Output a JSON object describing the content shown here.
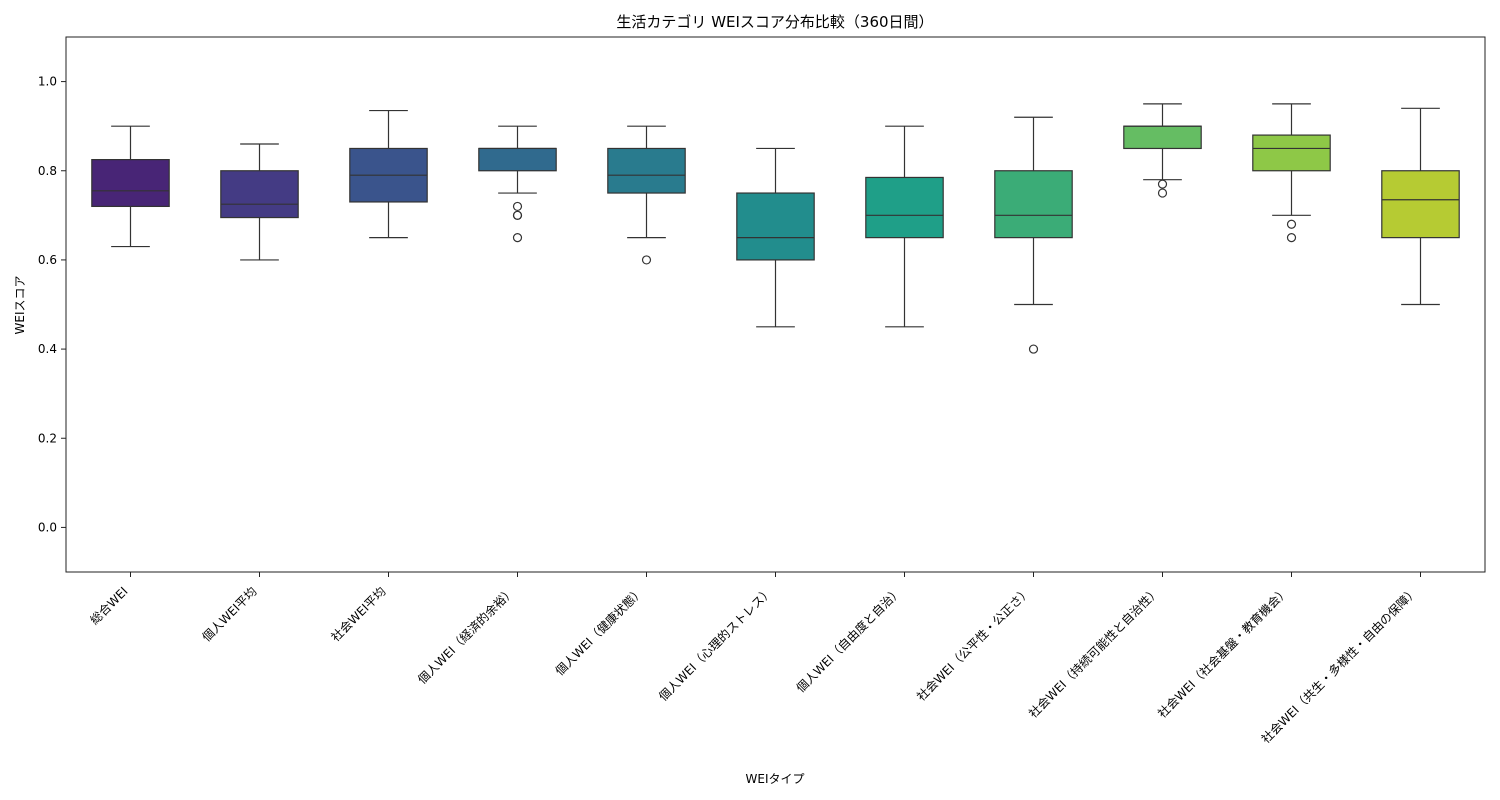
{
  "chart_data": {
    "type": "box",
    "title": "生活カテゴリ WEIスコア分布比較（360日間）",
    "xlabel": "WEIタイプ",
    "ylabel": "WEIスコア",
    "ylim": [
      -0.1,
      1.1
    ],
    "yticks": [
      "0.0",
      "0.2",
      "0.4",
      "0.6",
      "0.8",
      "1.0"
    ],
    "grid": false,
    "categories": [
      "総合WEI",
      "個人WEI平均",
      "社会WEI平均",
      "個人WEI（経済的余裕）",
      "個人WEI（健康状態）",
      "個人WEI（心理的ストレス）",
      "個人WEI（自由度と自治）",
      "社会WEI（公平性・公正さ）",
      "社会WEI（持続可能性と自治性）",
      "社会WEI（社会基盤・教育機会）",
      "社会WEI（共生・多様性・自由の保障）"
    ],
    "boxes": [
      {
        "whislo": 0.63,
        "q1": 0.72,
        "med": 0.755,
        "q3": 0.825,
        "whishi": 0.9,
        "fliers": [],
        "color": "#482576"
      },
      {
        "whislo": 0.6,
        "q1": 0.695,
        "med": 0.725,
        "q3": 0.8,
        "whishi": 0.86,
        "fliers": [],
        "color": "#443b84"
      },
      {
        "whislo": 0.65,
        "q1": 0.73,
        "med": 0.79,
        "q3": 0.85,
        "whishi": 0.935,
        "fliers": [],
        "color": "#3a548c"
      },
      {
        "whislo": 0.75,
        "q1": 0.8,
        "med": 0.85,
        "q3": 0.85,
        "whishi": 0.9,
        "fliers": [
          0.72,
          0.7,
          0.7,
          0.65
        ],
        "color": "#306a8e"
      },
      {
        "whislo": 0.65,
        "q1": 0.75,
        "med": 0.79,
        "q3": 0.85,
        "whishi": 0.9,
        "fliers": [
          0.6
        ],
        "color": "#297b8e"
      },
      {
        "whislo": 0.45,
        "q1": 0.6,
        "med": 0.65,
        "q3": 0.75,
        "whishi": 0.85,
        "fliers": [],
        "color": "#228d8d"
      },
      {
        "whislo": 0.45,
        "q1": 0.65,
        "med": 0.7,
        "q3": 0.785,
        "whishi": 0.9,
        "fliers": [],
        "color": "#1f9f88"
      },
      {
        "whislo": 0.5,
        "q1": 0.65,
        "med": 0.7,
        "q3": 0.8,
        "whishi": 0.92,
        "fliers": [
          0.4
        ],
        "color": "#3bac77"
      },
      {
        "whislo": 0.78,
        "q1": 0.85,
        "med": 0.9,
        "q3": 0.9,
        "whishi": 0.95,
        "fliers": [
          0.77,
          0.75
        ],
        "color": "#65bd63"
      },
      {
        "whislo": 0.7,
        "q1": 0.8,
        "med": 0.85,
        "q3": 0.88,
        "whishi": 0.95,
        "fliers": [
          0.68,
          0.65
        ],
        "color": "#8ec847"
      },
      {
        "whislo": 0.5,
        "q1": 0.65,
        "med": 0.735,
        "q3": 0.8,
        "whishi": 0.94,
        "fliers": [],
        "color": "#b6cb33"
      }
    ]
  }
}
